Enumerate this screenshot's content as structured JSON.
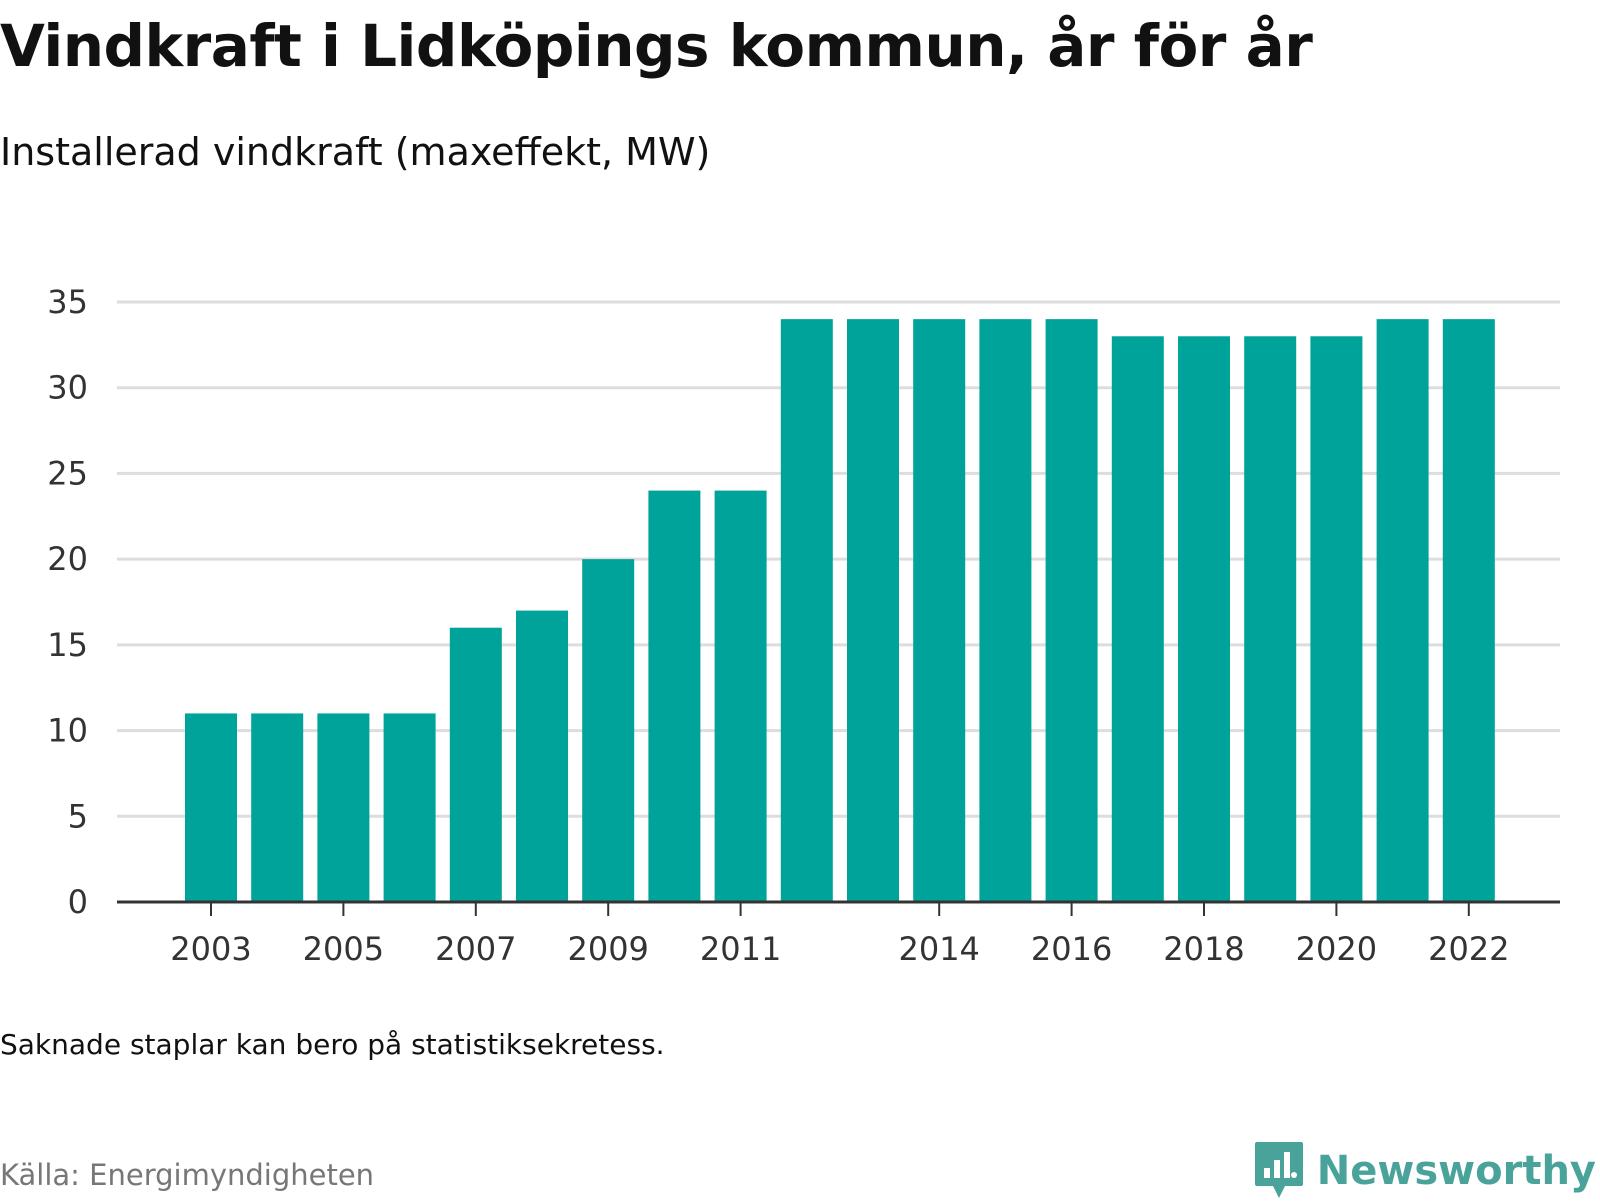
{
  "header": {
    "title": "Vindkraft i Lidköpings kommun, år för år",
    "subtitle": "Installerad vindkraft (maxeffekt, MW)"
  },
  "footer": {
    "note": "Saknade staplar kan bero på statistiksekretess.",
    "source": "Källa: Energimyndigheten",
    "brand": "Newsworthy",
    "brand_icon": "newsworthy-logo-icon"
  },
  "colors": {
    "bar": "#00a39a",
    "grid": "#dddddd",
    "axis": "#333333",
    "brand": "#4aa39b"
  },
  "chart_data": {
    "type": "bar",
    "title": "Vindkraft i Lidköpings kommun, år för år",
    "subtitle": "Installerad vindkraft (maxeffekt, MW)",
    "categories": [
      "2003",
      "2004",
      "2005",
      "2006",
      "2007",
      "2008",
      "2009",
      "2010",
      "2011",
      "2012",
      "2013",
      "2014",
      "2015",
      "2016",
      "2017",
      "2018",
      "2019",
      "2020",
      "2021",
      "2022"
    ],
    "values": [
      11,
      11,
      11,
      11,
      16,
      17,
      20,
      24,
      24,
      34,
      34,
      34,
      34,
      34,
      33,
      33,
      33,
      33,
      34,
      34
    ],
    "x_tick_labels": [
      "2003",
      "2005",
      "2007",
      "2009",
      "2011",
      "2014",
      "2016",
      "2018",
      "2020",
      "2022"
    ],
    "y_ticks": [
      0,
      5,
      10,
      15,
      20,
      25,
      30,
      35
    ],
    "ylim": [
      0,
      35
    ],
    "grid": true,
    "legend": "none"
  }
}
